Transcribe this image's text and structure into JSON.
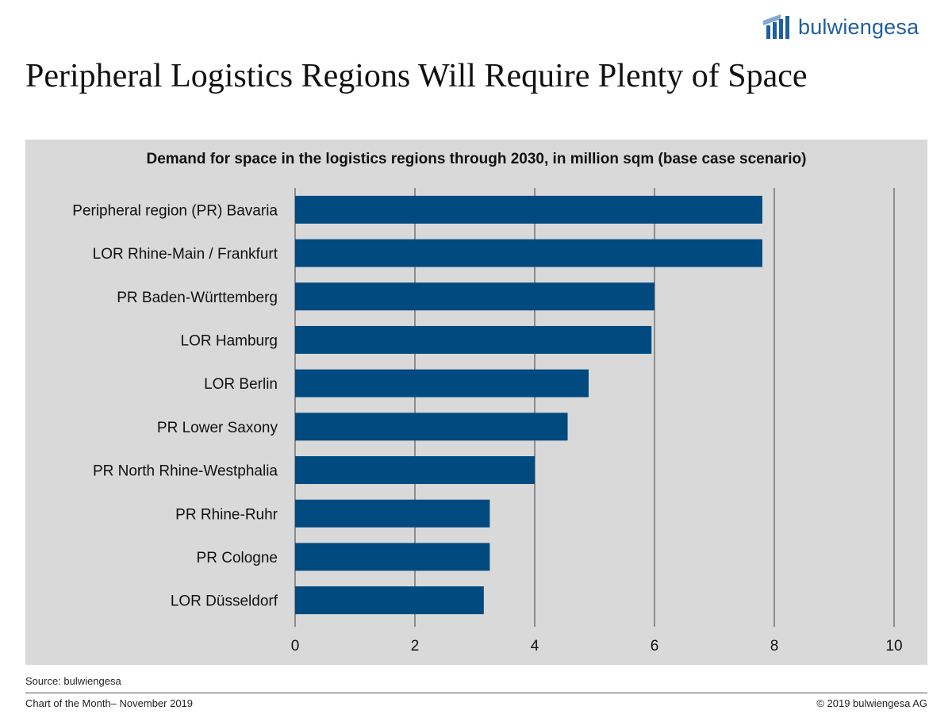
{
  "brand": {
    "name": "bulwiengesa",
    "color": "#1f5f9f"
  },
  "page_title": "Peripheral Logistics Regions Will Require Plenty of Space",
  "source": "Source: bulwiengesa",
  "footer": {
    "left": "Chart of the Month– November 2019",
    "right": "© 2019 bulwiengesa AG"
  },
  "chart_data": {
    "type": "bar",
    "orientation": "horizontal",
    "title": "Demand for space in the logistics regions through 2030, in million sqm (base case scenario)",
    "xlabel": "",
    "ylabel": "",
    "categories": [
      "Peripheral region (PR) Bavaria",
      "LOR Rhine-Main / Frankfurt",
      "PR Baden-Württemberg",
      "LOR Hamburg",
      "LOR Berlin",
      "PR Lower Saxony",
      "PR North Rhine-Westphalia",
      "PR Rhine-Ruhr",
      "PR Cologne",
      "LOR Düsseldorf"
    ],
    "values": [
      7.8,
      7.8,
      6.0,
      5.95,
      4.9,
      4.55,
      4.0,
      3.25,
      3.25,
      3.15
    ],
    "xlim": [
      0,
      10
    ],
    "xticks": [
      0,
      2,
      4,
      6,
      8,
      10
    ],
    "grid": true,
    "legend": "none",
    "colors": {
      "bar": "#004a80",
      "panel": "#d9d9d9",
      "grid": "#595959"
    }
  }
}
